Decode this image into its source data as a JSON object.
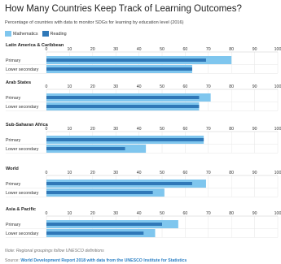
{
  "title": "How Many Countries Keep Track of Learning Outcomes?",
  "subtitle": "Percentage of countries with data to monitor SDGs for learning by education level (2016)",
  "note": "Note: Regional groupings follow UNESCO definitions",
  "source_prefix": "Source:",
  "source_text": "World Development Report 2018 with data from the UNESCO Institute for Statistics",
  "colors": {
    "mathematics": "#7fc6ee",
    "reading": "#2f78b8",
    "axis": "#cccccc",
    "grid": "#e6e6e6"
  },
  "chart_data": {
    "type": "bar",
    "orientation": "horizontal",
    "xlim": [
      0,
      100
    ],
    "ticks": [
      "0",
      "10",
      "20",
      "30",
      "40",
      "50",
      "60",
      "70",
      "80",
      "90",
      "100"
    ],
    "legend": [
      "Mathematics",
      "Reading"
    ],
    "groups": [
      {
        "name": "Latin America & Caribbean",
        "rows": [
          {
            "label": "Primary",
            "mathematics": 80,
            "reading": 69
          },
          {
            "label": "Lower secondary",
            "mathematics": 63,
            "reading": 63
          }
        ]
      },
      {
        "name": "Arab States",
        "rows": [
          {
            "label": "Primary",
            "mathematics": 71,
            "reading": 66
          },
          {
            "label": "Lower secondary",
            "mathematics": 66,
            "reading": 66
          }
        ]
      },
      {
        "name": "Sub-Saharan Africa",
        "rows": [
          {
            "label": "Primary",
            "mathematics": 68,
            "reading": 68
          },
          {
            "label": "Lower secondary",
            "mathematics": 43,
            "reading": 34
          }
        ]
      },
      {
        "name": "World",
        "rows": [
          {
            "label": "Primary",
            "mathematics": 69,
            "reading": 63
          },
          {
            "label": "Lower secondary",
            "mathematics": 51,
            "reading": 46
          }
        ]
      },
      {
        "name": "Asia & Pacific",
        "rows": [
          {
            "label": "Primary",
            "mathematics": 57,
            "reading": 50
          },
          {
            "label": "Lower secondary",
            "mathematics": 47,
            "reading": 42
          }
        ]
      }
    ]
  }
}
